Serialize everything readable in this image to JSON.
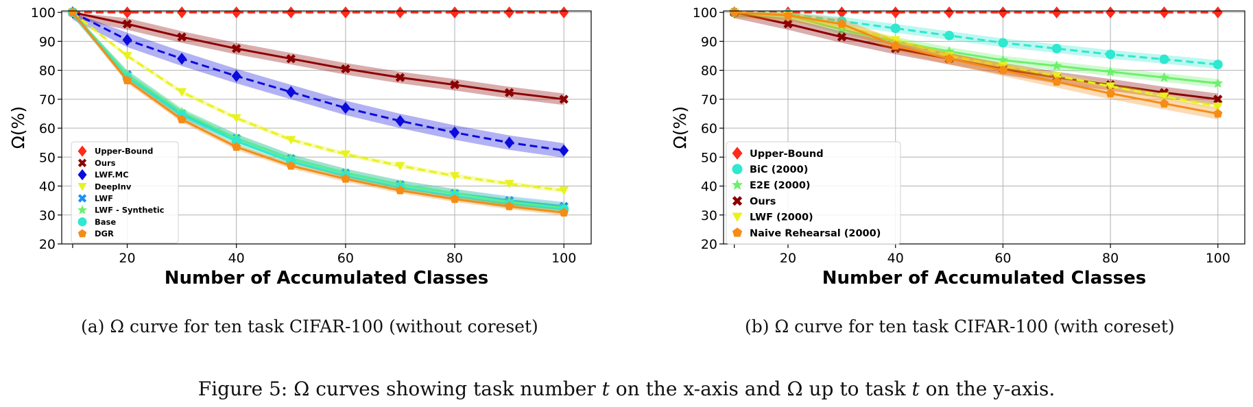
{
  "figure": {
    "caption_parts": [
      {
        "text": "Figure 5: Ω curves showing task number ",
        "italic": false
      },
      {
        "text": "t",
        "italic": true
      },
      {
        "text": " on the x-axis and Ω up to task ",
        "italic": false
      },
      {
        "text": "t",
        "italic": true
      },
      {
        "text": " on the y-axis.",
        "italic": false
      }
    ]
  },
  "chart_data": [
    {
      "type": "line",
      "caption": "(a) Ω curve for ten task CIFAR-100 (without coreset)",
      "xlabel": "Number of Accumulated Classes",
      "ylabel": "Ω(%)",
      "xlim": [
        8,
        105
      ],
      "ylim": [
        20,
        100.5
      ],
      "xticks": [
        20,
        40,
        60,
        80,
        100
      ],
      "yticks": [
        20,
        30,
        40,
        50,
        60,
        70,
        80,
        90,
        100
      ],
      "grid": true,
      "legend_position": "lower-left",
      "x": [
        10,
        20,
        30,
        40,
        50,
        60,
        70,
        80,
        90,
        100
      ],
      "series": [
        {
          "name": "Upper-Bound",
          "color": "#ff2a1a",
          "marker": "diamond",
          "dashed": true,
          "band": 0,
          "values": [
            100,
            100,
            100,
            100,
            100,
            100,
            100,
            100,
            100,
            100
          ]
        },
        {
          "name": "Ours",
          "color": "#8b0000",
          "marker": "x",
          "dashed": false,
          "band": 2.0,
          "values": [
            100,
            96,
            91.5,
            87.5,
            84,
            80.5,
            77.5,
            75,
            72.3,
            70
          ]
        },
        {
          "name": "LWF.MC",
          "color": "#0b0bdc",
          "marker": "diamond",
          "dashed": true,
          "band": 2.5,
          "values": [
            100,
            90.5,
            84,
            78,
            72.5,
            67,
            62.5,
            58.5,
            55,
            52.3
          ]
        },
        {
          "name": "DeepInv",
          "color": "#e8f21e",
          "marker": "triangle",
          "dashed": true,
          "band": 0.8,
          "values": [
            100,
            85,
            72.5,
            63.5,
            56,
            51,
            47,
            43.5,
            40.8,
            38.5
          ]
        },
        {
          "name": "LWF",
          "color": "#1e8ff5",
          "marker": "x",
          "dashed": false,
          "band": 1.5,
          "values": [
            100,
            78.5,
            65,
            56.5,
            49.5,
            44.5,
            40.5,
            37.5,
            35,
            33
          ]
        },
        {
          "name": "LWF - Synthetic",
          "color": "#6cf06c",
          "marker": "star",
          "dashed": false,
          "band": 1.5,
          "values": [
            100,
            78.5,
            65.5,
            56.5,
            49.5,
            44.5,
            40.5,
            37.5,
            34.5,
            32.5
          ]
        },
        {
          "name": "Base",
          "color": "#2ee8cf",
          "marker": "circle",
          "dashed": false,
          "band": 1.5,
          "values": [
            100,
            77.5,
            64.5,
            55.5,
            48.5,
            43.5,
            39.5,
            36.5,
            33.8,
            32
          ]
        },
        {
          "name": "DGR",
          "color": "#f58c16",
          "marker": "pentagon",
          "dashed": false,
          "band": 1.0,
          "values": [
            100,
            76.5,
            63,
            53.5,
            47,
            42.5,
            38.5,
            35.5,
            33,
            30.8
          ]
        }
      ]
    },
    {
      "type": "line",
      "caption": "(b) Ω curve for ten task CIFAR-100 (with coreset)",
      "xlabel": "Number of Accumulated Classes",
      "ylabel": "Ω(%)",
      "xlim": [
        8,
        105
      ],
      "ylim": [
        20,
        100.5
      ],
      "xticks": [
        20,
        40,
        60,
        80,
        100
      ],
      "yticks": [
        20,
        30,
        40,
        50,
        60,
        70,
        80,
        90,
        100
      ],
      "grid": true,
      "legend_position": "lower-left",
      "x": [
        10,
        20,
        30,
        40,
        50,
        60,
        70,
        80,
        90,
        100
      ],
      "series": [
        {
          "name": "Upper-Bound",
          "color": "#ff2a1a",
          "marker": "diamond",
          "dashed": true,
          "band": 0,
          "values": [
            100,
            100,
            100,
            100,
            100,
            100,
            100,
            100,
            100,
            100
          ]
        },
        {
          "name": "BiC (2000)",
          "color": "#2ee8cf",
          "marker": "circle",
          "dashed": true,
          "band": 1.5,
          "values": [
            100,
            99.5,
            97,
            94.5,
            92,
            89.5,
            87.5,
            85.5,
            83.8,
            82
          ]
        },
        {
          "name": "E2E (2000)",
          "color": "#6cf06c",
          "marker": "star",
          "dashed": false,
          "band": 1.5,
          "values": [
            100,
            99,
            94,
            90,
            86.5,
            83.5,
            81.5,
            79.5,
            77.5,
            75.5
          ]
        },
        {
          "name": "Ours",
          "color": "#8b0000",
          "marker": "x",
          "dashed": false,
          "band": 2.0,
          "values": [
            100,
            96,
            91.5,
            87.5,
            84,
            80.5,
            77.5,
            75,
            72.3,
            70
          ]
        },
        {
          "name": "LWF (2000)",
          "color": "#e8f21e",
          "marker": "triangle",
          "dashed": true,
          "band": 1.0,
          "values": [
            100,
            99,
            95.5,
            90.5,
            85,
            81.5,
            78,
            74.5,
            71,
            67.5
          ]
        },
        {
          "name": "Naive Rehearsal (2000)",
          "color": "#f58c16",
          "marker": "pentagon",
          "dashed": false,
          "band": 2.0,
          "values": [
            100,
            99,
            96,
            88.5,
            84,
            80,
            76,
            72,
            68.5,
            65
          ]
        }
      ]
    }
  ]
}
